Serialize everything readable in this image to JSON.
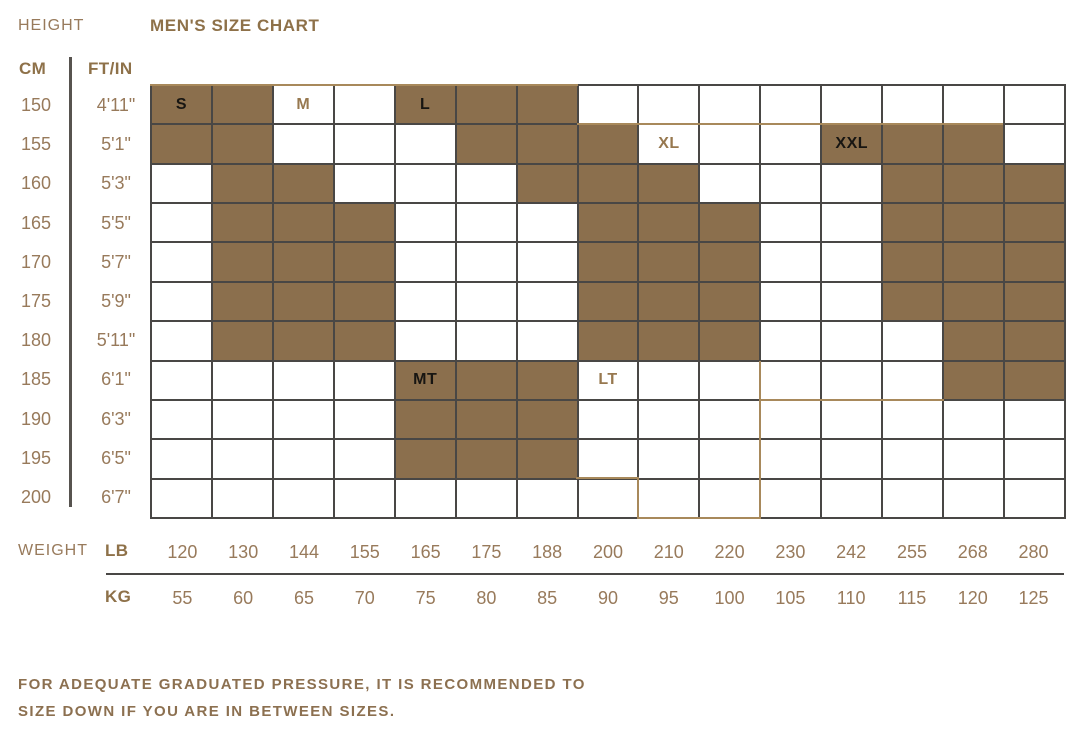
{
  "labels": {
    "height": "HEIGHT",
    "title": "MEN'S SIZE CHART",
    "cm": "CM",
    "ftin": "FT/IN",
    "weight": "WEIGHT",
    "lb": "LB",
    "kg": "KG"
  },
  "footer": {
    "line1": "FOR ADEQUATE GRADUATED PRESSURE, IT IS RECOMMENDED TO",
    "line2": "SIZE DOWN IF YOU ARE IN BETWEEN SIZES."
  },
  "colors": {
    "cell_fill": "#8B6F4D",
    "brown_text": "#987A5B",
    "bold_brown": "#8E7149",
    "grid_line": "#494745",
    "tan_accent": "#A8895B",
    "dark_size_label": "#171512"
  },
  "chart_data": {
    "type": "heatmap",
    "title": "MEN'S SIZE CHART",
    "x_axis": {
      "label": "WEIGHT",
      "lb": [
        120,
        130,
        144,
        155,
        165,
        175,
        188,
        200,
        210,
        220,
        230,
        242,
        255,
        268,
        280
      ],
      "kg": [
        55,
        60,
        65,
        70,
        75,
        80,
        85,
        90,
        95,
        100,
        105,
        110,
        115,
        120,
        125
      ]
    },
    "y_axis": {
      "label": "HEIGHT",
      "cm": [
        150,
        155,
        160,
        165,
        170,
        175,
        180,
        185,
        190,
        195,
        200
      ],
      "ft_in": [
        "4'11\"",
        "5'1\"",
        "5'3\"",
        "5'5\"",
        "5'7\"",
        "5'9\"",
        "5'11\"",
        "6'1\"",
        "6'3\"",
        "6'5\"",
        "6'7\""
      ]
    },
    "filled_matrix": [
      [
        1,
        1,
        0,
        0,
        1,
        1,
        1,
        0,
        0,
        0,
        0,
        0,
        0,
        0,
        0
      ],
      [
        1,
        1,
        0,
        0,
        0,
        1,
        1,
        1,
        0,
        0,
        0,
        1,
        1,
        1,
        0
      ],
      [
        0,
        1,
        1,
        0,
        0,
        0,
        1,
        1,
        1,
        0,
        0,
        0,
        1,
        1,
        1
      ],
      [
        0,
        1,
        1,
        1,
        0,
        0,
        0,
        1,
        1,
        1,
        0,
        0,
        1,
        1,
        1
      ],
      [
        0,
        1,
        1,
        1,
        0,
        0,
        0,
        1,
        1,
        1,
        0,
        0,
        1,
        1,
        1
      ],
      [
        0,
        1,
        1,
        1,
        0,
        0,
        0,
        1,
        1,
        1,
        0,
        0,
        1,
        1,
        1
      ],
      [
        0,
        1,
        1,
        1,
        0,
        0,
        0,
        1,
        1,
        1,
        0,
        0,
        0,
        1,
        1
      ],
      [
        0,
        0,
        0,
        0,
        1,
        1,
        1,
        0,
        0,
        0,
        0,
        0,
        0,
        1,
        1
      ],
      [
        0,
        0,
        0,
        0,
        1,
        1,
        1,
        0,
        0,
        0,
        0,
        0,
        0,
        0,
        0
      ],
      [
        0,
        0,
        0,
        0,
        1,
        1,
        1,
        0,
        0,
        0,
        0,
        0,
        0,
        0,
        0
      ],
      [
        0,
        0,
        0,
        0,
        0,
        0,
        0,
        0,
        0,
        0,
        0,
        0,
        0,
        0,
        0
      ]
    ],
    "size_labels": [
      {
        "size": "S",
        "row": 0,
        "col": 0,
        "text_color": "dark"
      },
      {
        "size": "M",
        "row": 0,
        "col": 2,
        "text_color": "brown"
      },
      {
        "size": "L",
        "row": 0,
        "col": 4,
        "text_color": "dark"
      },
      {
        "size": "XL",
        "row": 1,
        "col": 8,
        "text_color": "brown"
      },
      {
        "size": "XXL",
        "row": 1,
        "col": 11,
        "text_color": "dark"
      },
      {
        "size": "MT",
        "row": 7,
        "col": 4,
        "text_color": "dark"
      },
      {
        "size": "LT",
        "row": 7,
        "col": 7,
        "text_color": "brown"
      }
    ],
    "note": "FOR ADEQUATE GRADUATED PRESSURE, IT IS RECOMMENDED TO SIZE DOWN IF YOU ARE IN BETWEEN SIZES."
  }
}
